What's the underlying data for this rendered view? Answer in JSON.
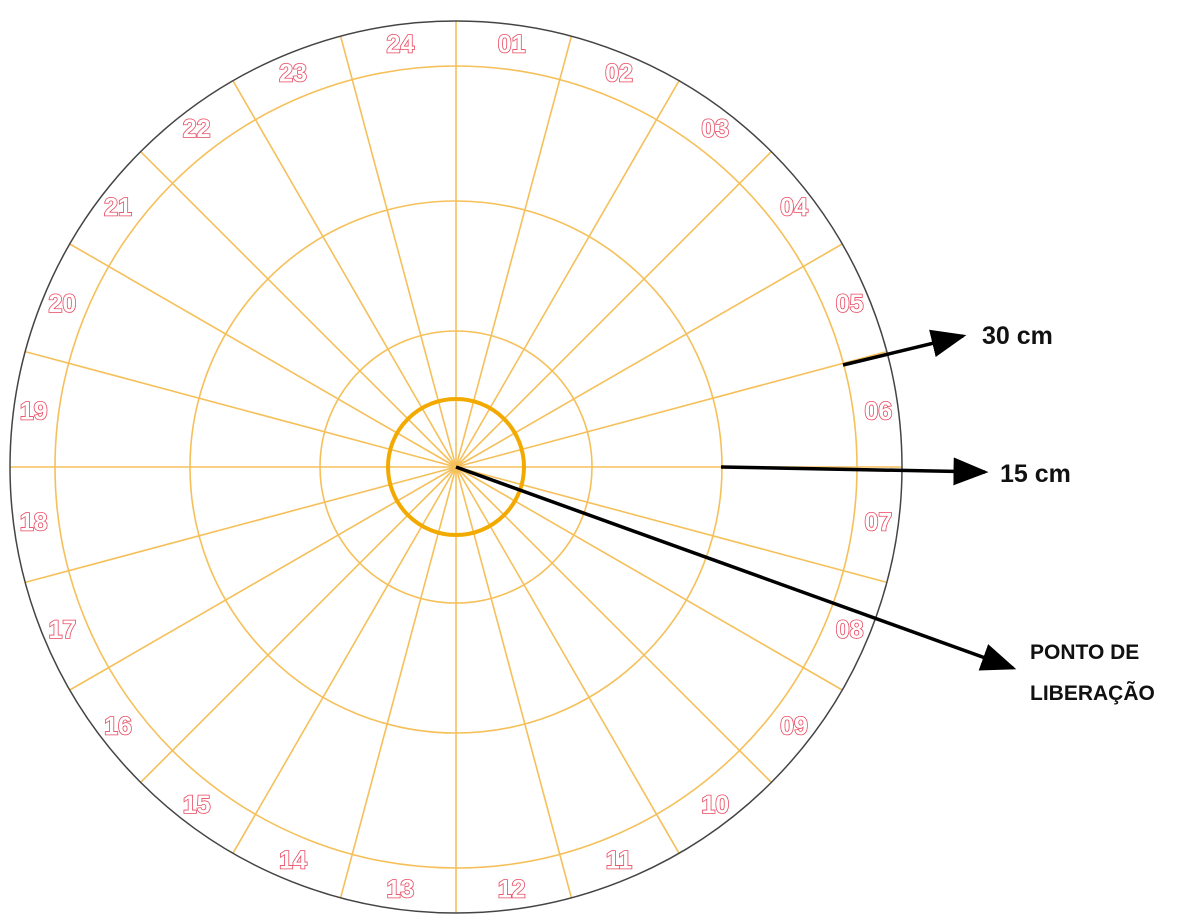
{
  "sectors": [
    "01",
    "02",
    "03",
    "04",
    "05",
    "06",
    "07",
    "08",
    "09",
    "10",
    "11",
    "12",
    "13",
    "14",
    "15",
    "16",
    "17",
    "18",
    "19",
    "20",
    "21",
    "22",
    "23",
    "24"
  ],
  "annotations": {
    "outer_ring": "30 cm",
    "middle_ring": "15 cm",
    "release_point_line1": "PONTO DE",
    "release_point_line2": "LIBERAÇÃO"
  },
  "colors": {
    "grid_lines": "#f5c05a",
    "release_circle": "#f2a900",
    "sector_label_outline": "#e8475f",
    "outer_border": "#444444",
    "arrows": "#000000"
  }
}
